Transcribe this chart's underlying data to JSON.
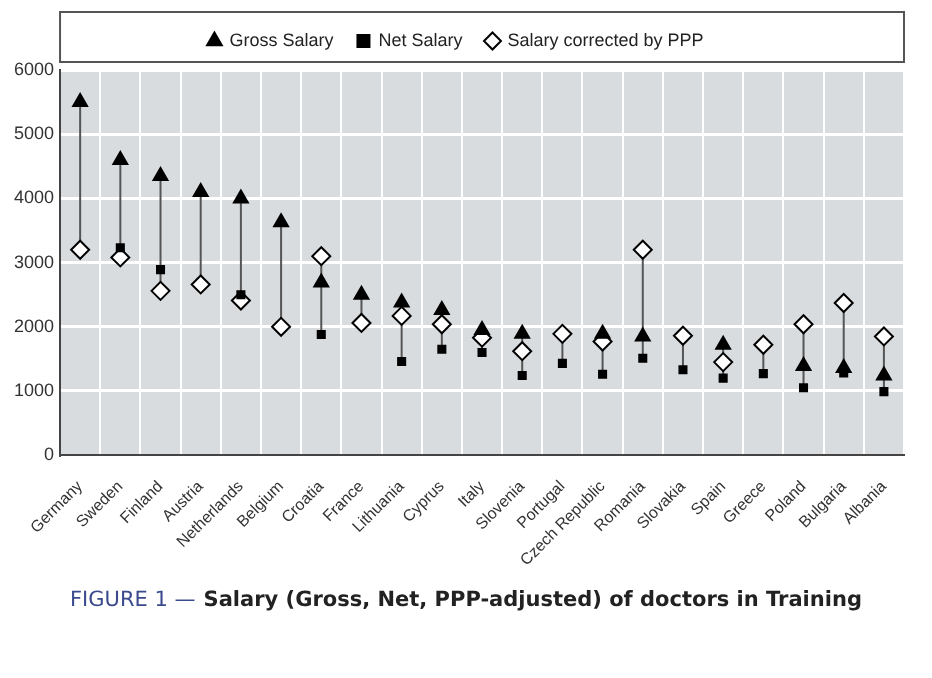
{
  "chart_data": {
    "type": "scatter",
    "title": "Salary (Gross, Net, PPP-adjusted) of doctors in Training",
    "annotations": [
      "FIGURE 1 —"
    ],
    "categories": [
      "Germany",
      "Sweden",
      "Finland",
      "Austria",
      "Netherlands",
      "Belgium",
      "Croatia",
      "France",
      "Lithuania",
      "Cyprus",
      "Italy",
      "Slovenia",
      "Portugal",
      "Czech Republic",
      "Romania",
      "Slovakia",
      "Spain",
      "Greece",
      "Poland",
      "Bulgaria",
      "Albania"
    ],
    "series": [
      {
        "name": "Gross Salary",
        "color": "#000000",
        "marker": "triangle",
        "values": [
          5500,
          4600,
          4350,
          4100,
          4000,
          3630,
          2690,
          2500,
          2380,
          2260,
          1950,
          1890,
          null,
          1890,
          1850,
          null,
          1720,
          null,
          1390,
          1360,
          1240
        ]
      },
      {
        "name": "Net Salary",
        "color": "#000000",
        "marker": "square",
        "values": [
          null,
          3230,
          2890,
          null,
          2500,
          null,
          1880,
          null,
          1460,
          1650,
          1600,
          1240,
          1430,
          1260,
          1510,
          1330,
          1200,
          1270,
          1050,
          1280,
          990
        ]
      },
      {
        "name": "Salary corrected by PPP",
        "color": "#ffffff",
        "marker": "diamond",
        "values": [
          3200,
          3080,
          2560,
          2660,
          2410,
          2000,
          3100,
          2060,
          2170,
          2040,
          1830,
          1620,
          1890,
          1770,
          3200,
          1860,
          1450,
          1720,
          2040,
          2370,
          1850
        ]
      }
    ],
    "ylim": [
      0,
      6000
    ],
    "yticks": [
      0,
      1000,
      2000,
      3000,
      4000,
      5000,
      6000
    ],
    "grid": true,
    "legend": "top"
  }
}
